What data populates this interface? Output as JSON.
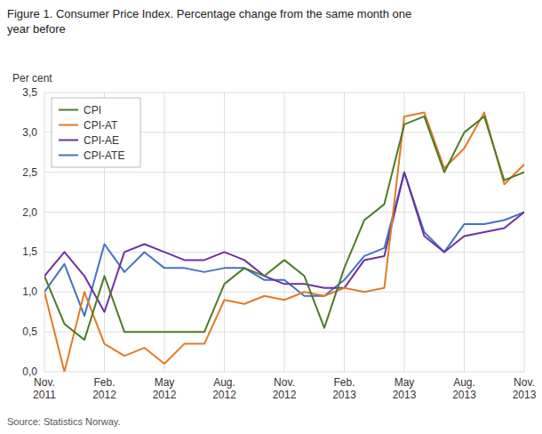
{
  "chart_data": {
    "type": "line",
    "title": "Figure 1. Consumer Price Index. Percentage change from the same month one\nyear before",
    "y_label": "Per cent",
    "annotations": [
      "Source: Statistics Norway."
    ],
    "categories": [
      "Nov.\n2011",
      null,
      null,
      "Feb.\n2012",
      null,
      null,
      "May\n2012",
      null,
      null,
      "Aug.\n2012",
      null,
      null,
      "Nov.\n2012",
      null,
      null,
      "Feb.\n2013",
      null,
      null,
      "May\n2013",
      null,
      null,
      "Aug.\n2013",
      null,
      null,
      "Nov.\n2013"
    ],
    "ylim": [
      0.0,
      3.5
    ],
    "yticks": [
      {
        "value": 0.0,
        "label": "0,0"
      },
      {
        "value": 0.5,
        "label": "0,5"
      },
      {
        "value": 1.0,
        "label": "1,0"
      },
      {
        "value": 1.5,
        "label": "1,5"
      },
      {
        "value": 2.0,
        "label": "2,0"
      },
      {
        "value": 2.5,
        "label": "2,5"
      },
      {
        "value": 3.0,
        "label": "3,0"
      },
      {
        "value": 3.5,
        "label": "3,5"
      }
    ],
    "grid": true,
    "legend": "upper left",
    "series": [
      {
        "name": "CPI",
        "color": "#4d7c28",
        "values": [
          1.2,
          0.6,
          0.4,
          1.2,
          0.5,
          0.5,
          0.5,
          0.5,
          0.5,
          1.1,
          1.3,
          1.2,
          1.4,
          1.2,
          0.55,
          1.3,
          1.9,
          2.1,
          3.1,
          3.2,
          2.5,
          3.0,
          3.2,
          2.4,
          2.5
        ]
      },
      {
        "name": "CPI-AT",
        "color": "#e07b28",
        "values": [
          1.0,
          0.0,
          1.0,
          0.35,
          0.2,
          0.3,
          0.1,
          0.35,
          0.35,
          0.9,
          0.85,
          0.95,
          0.9,
          1.0,
          0.95,
          1.05,
          1.0,
          1.05,
          3.2,
          3.25,
          2.55,
          2.8,
          3.25,
          2.35,
          2.6
        ]
      },
      {
        "name": "CPI-AE",
        "color": "#7030a0",
        "values": [
          1.2,
          1.5,
          1.2,
          0.75,
          1.5,
          1.6,
          1.5,
          1.4,
          1.4,
          1.5,
          1.4,
          1.2,
          1.1,
          1.1,
          1.05,
          1.05,
          1.4,
          1.45,
          2.5,
          1.7,
          1.5,
          1.7,
          1.75,
          1.8,
          2.0
        ]
      },
      {
        "name": "CPI-ATE",
        "color": "#4472c4",
        "values": [
          1.0,
          1.35,
          0.7,
          1.6,
          1.25,
          1.5,
          1.3,
          1.3,
          1.25,
          1.3,
          1.3,
          1.15,
          1.15,
          0.95,
          0.95,
          1.15,
          1.45,
          1.55,
          2.5,
          1.75,
          1.5,
          1.85,
          1.85,
          1.9,
          2.0
        ]
      }
    ]
  }
}
